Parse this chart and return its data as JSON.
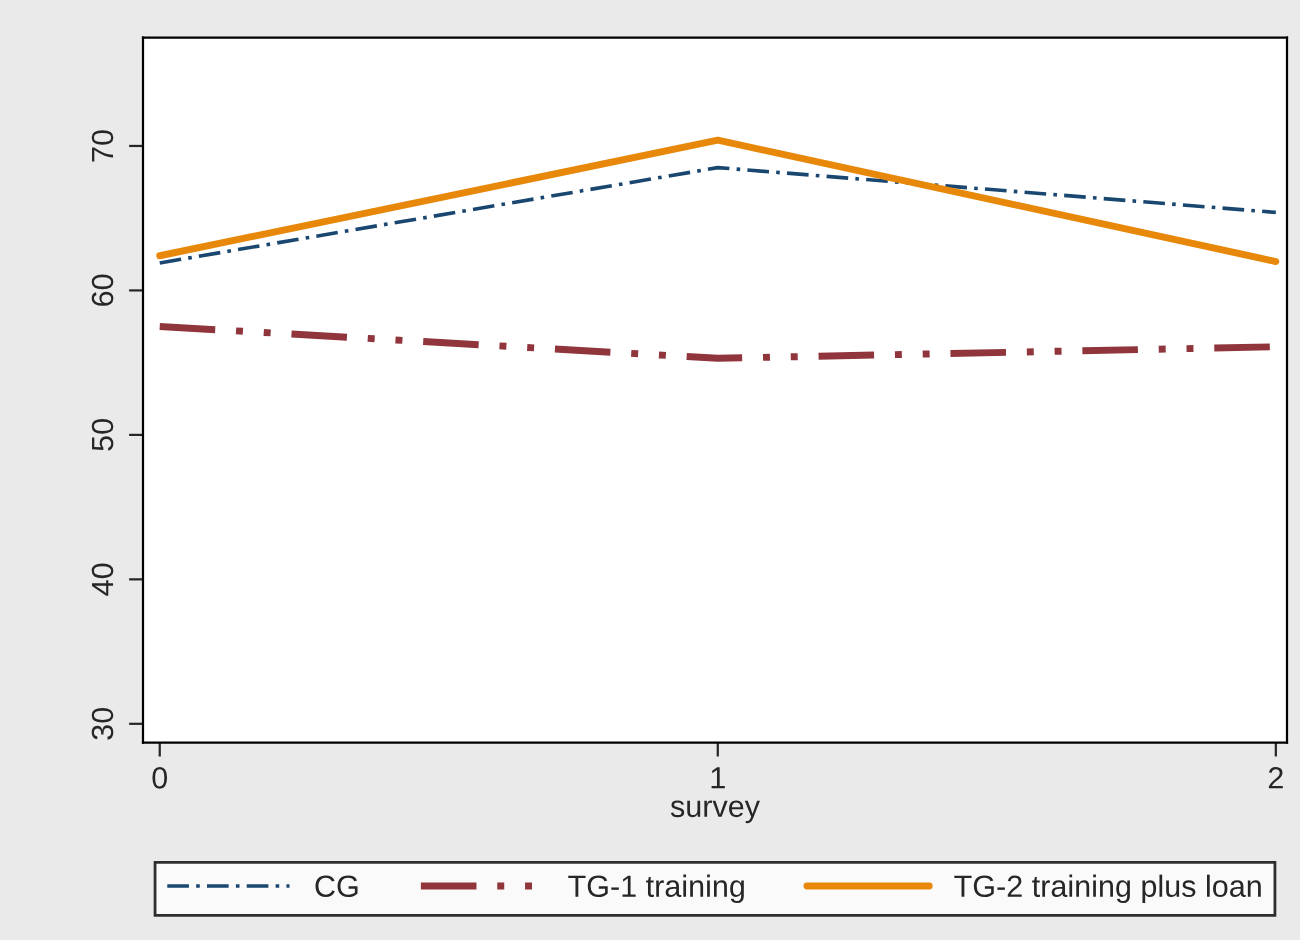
{
  "chart_data": {
    "type": "line",
    "xlabel": "survey",
    "x": [
      0,
      1,
      2
    ],
    "series": [
      {
        "name": "CG",
        "color": "#1a476f",
        "values": [
          61.9,
          68.5,
          65.4
        ],
        "line_style": "dashdot"
      },
      {
        "name": "TG-1 training",
        "color": "#90353b",
        "values": [
          57.5,
          55.3,
          56.1
        ],
        "line_style": "dashed"
      },
      {
        "name": "TG-2 training plus loan",
        "color": "#e8880a",
        "values": [
          62.4,
          70.4,
          62.0
        ],
        "line_style": "solid"
      }
    ],
    "xlim": [
      -0.03,
      2.02
    ],
    "ylim": [
      28.7,
      77.5
    ],
    "xticks": [
      0,
      1,
      2
    ],
    "yticks": [
      30,
      40,
      50,
      60,
      70
    ],
    "grid": false,
    "legend": "bottom",
    "marker": "none"
  }
}
